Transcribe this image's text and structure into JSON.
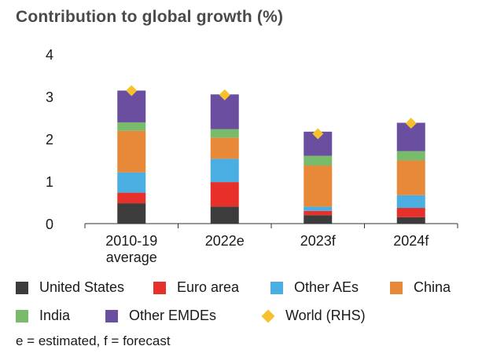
{
  "title": "Contribution to global growth (%)",
  "footnote": "e = estimated, f = forecast",
  "colors": {
    "United States": "#3c3c3c",
    "Euro area": "#e8302a",
    "Other AEs": "#4aaee3",
    "China": "#e8893a",
    "India": "#78bb6a",
    "Other EMDEs": "#6a4fa0",
    "World (RHS)": "#f7c12e"
  },
  "chart_data": {
    "type": "bar",
    "stacked": true,
    "categories": [
      [
        "2010-19",
        "average"
      ],
      [
        "2022e"
      ],
      [
        "2023f"
      ],
      [
        "2024f"
      ]
    ],
    "ylim": [
      0,
      4
    ],
    "yticks": [
      0,
      1,
      2,
      3,
      4
    ],
    "series": [
      {
        "name": "United States",
        "values": [
          0.48,
          0.4,
          0.2,
          0.15
        ]
      },
      {
        "name": "Euro area",
        "values": [
          0.25,
          0.58,
          0.1,
          0.22
        ]
      },
      {
        "name": "Other AEs",
        "values": [
          0.48,
          0.55,
          0.1,
          0.3
        ]
      },
      {
        "name": "China",
        "values": [
          0.98,
          0.5,
          0.97,
          0.82
        ]
      },
      {
        "name": "India",
        "values": [
          0.2,
          0.2,
          0.23,
          0.22
        ]
      },
      {
        "name": "Other EMDEs",
        "values": [
          0.75,
          0.82,
          0.57,
          0.67
        ]
      }
    ],
    "world": {
      "name": "World (RHS)",
      "values": [
        3.14,
        3.04,
        2.12,
        2.37
      ]
    },
    "grid": false,
    "legend_position": "bottom"
  },
  "legend": {
    "row1": [
      "United States",
      "Euro area",
      "Other AEs",
      "China"
    ],
    "row2": [
      "India",
      "Other EMDEs",
      "World (RHS)"
    ]
  }
}
